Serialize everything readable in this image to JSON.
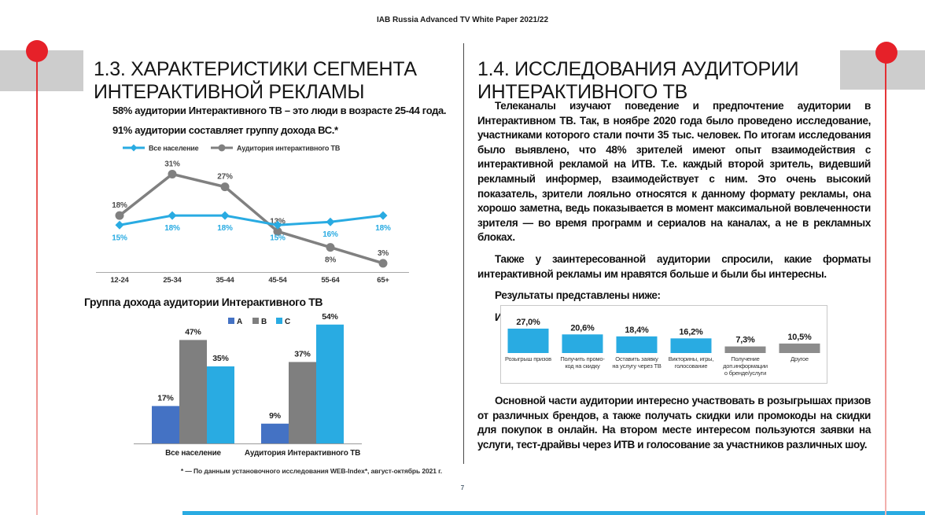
{
  "page": {
    "header": "IAB Russia Advanced TV White Paper 2021/22",
    "page_number": "7"
  },
  "colors": {
    "accent_blue": "#29ABE2",
    "series_dark_blue": "#4472C4",
    "series_gray": "#7F7F7F",
    "accent_red": "#E62129",
    "band_gray": "#CDCDCD"
  },
  "left_column": {
    "title": "1.3. ХАРАКТЕРИСТИКИ СЕГМЕНТА ИНТЕРАКТИВНОЙ РЕКЛАМЫ",
    "lead_lines": [
      "58% аудитории Интерактивного ТВ – это люди в возрасте 25-44 года.",
      "91% аудитории составляет группу дохода ВС.*"
    ],
    "footnote": "* — По данным установочного исследования WEB-Index*, август-октябрь 2021 г."
  },
  "right_column": {
    "title": "1.4. ИССЛЕДОВАНИЯ АУДИТОРИИ ИНТЕРАКТИВНОГО ТВ",
    "paragraphs": [
      "Телеканалы изучают поведение и предпочтение аудитории в Интерактивном ТВ. Так, в ноябре 2020 года было проведено исследование, участниками которого стали почти 35 тыс. человек. По итогам исследования было выявлено, что 48% зрителей имеют опыт взаимодействия с интерактивной рекламой на ИТВ. Т.е. каждый второй зритель, видевший рекламный информер, взаимодействует с ним. Это очень высокий показатель, зрители лояльно относятся к данному формату рекламы, она хорошо заметна, ведь показывается в момент максимальной вовлеченности зрителя — во время программ и сериалов на каналах, а не в рекламных блоках.",
      "Также у заинтересованной аудитории спросили, какие форматы интерактивной рекламы им нравятся больше и были бы интересны.",
      "Результаты представлены ниже:",
      "Интерес зрителей к форматам интерактивной рекламы"
    ],
    "closing_paragraph": "Основной части аудитории интересно участвовать в розыгрышах призов от различных брендов, а также получать скидки или промокоды на скидки для покупок в онлайн. На втором месте интересом пользуются заявки на услуги, тест-драйвы через ИТВ и голосование за участников различных шоу."
  },
  "chart_data": [
    {
      "type": "line",
      "categories": [
        "12-24",
        "25-34",
        "35-44",
        "45-54",
        "55-64",
        "65+"
      ],
      "series": [
        {
          "name": "Все население",
          "color": "#29ABE2",
          "marker": "diamond",
          "values": [
            15,
            18,
            18,
            15,
            16,
            18
          ]
        },
        {
          "name": "Аудитория интерактивного ТВ",
          "color": "#808080",
          "marker": "circle",
          "values": [
            18,
            31,
            27,
            13,
            8,
            3
          ]
        }
      ],
      "value_suffix": "%",
      "legend_position": "top",
      "grid": false
    },
    {
      "type": "bar",
      "title": "Группа дохода аудитории Интерактивного ТВ",
      "categories": [
        "Все население",
        "Аудитория Интерактивного ТВ"
      ],
      "series": [
        {
          "name": "A",
          "color": "#4472C4",
          "values": [
            17,
            9
          ]
        },
        {
          "name": "B",
          "color": "#7F7F7F",
          "values": [
            47,
            37
          ]
        },
        {
          "name": "C",
          "color": "#29ABE2",
          "values": [
            35,
            54
          ]
        }
      ],
      "value_suffix": "%",
      "legend_position": "top",
      "grid": false
    },
    {
      "type": "bar",
      "title": "Интерес зрителей к форматам интерактивной рекламы",
      "categories": [
        "Розыгрыш призов",
        "Получить промо-код на скидку",
        "Оставить заявку на услугу через ТВ",
        "Викторины, игры, голосование",
        "Получение доп.информации о бренде/услуги",
        "Другое"
      ],
      "tick_lines": [
        [
          "Розыгрыш призов"
        ],
        [
          "Получить промо-",
          "код на скидку"
        ],
        [
          "Оставить заявку",
          "на услугу через ТВ"
        ],
        [
          "Викторины, игры,",
          "голосование"
        ],
        [
          "Получение",
          "доп.информации",
          "о бренде/услуги"
        ],
        [
          "Другое"
        ]
      ],
      "values": [
        27.0,
        20.6,
        18.4,
        16.2,
        7.3,
        10.5
      ],
      "value_labels": [
        "27,0%",
        "20,6%",
        "18,4%",
        "16,2%",
        "7,3%",
        "10,5%"
      ],
      "bar_colors": [
        "#29ABE2",
        "#29ABE2",
        "#29ABE2",
        "#29ABE2",
        "#8C8C8C",
        "#8C8C8C"
      ],
      "grid": false
    }
  ]
}
